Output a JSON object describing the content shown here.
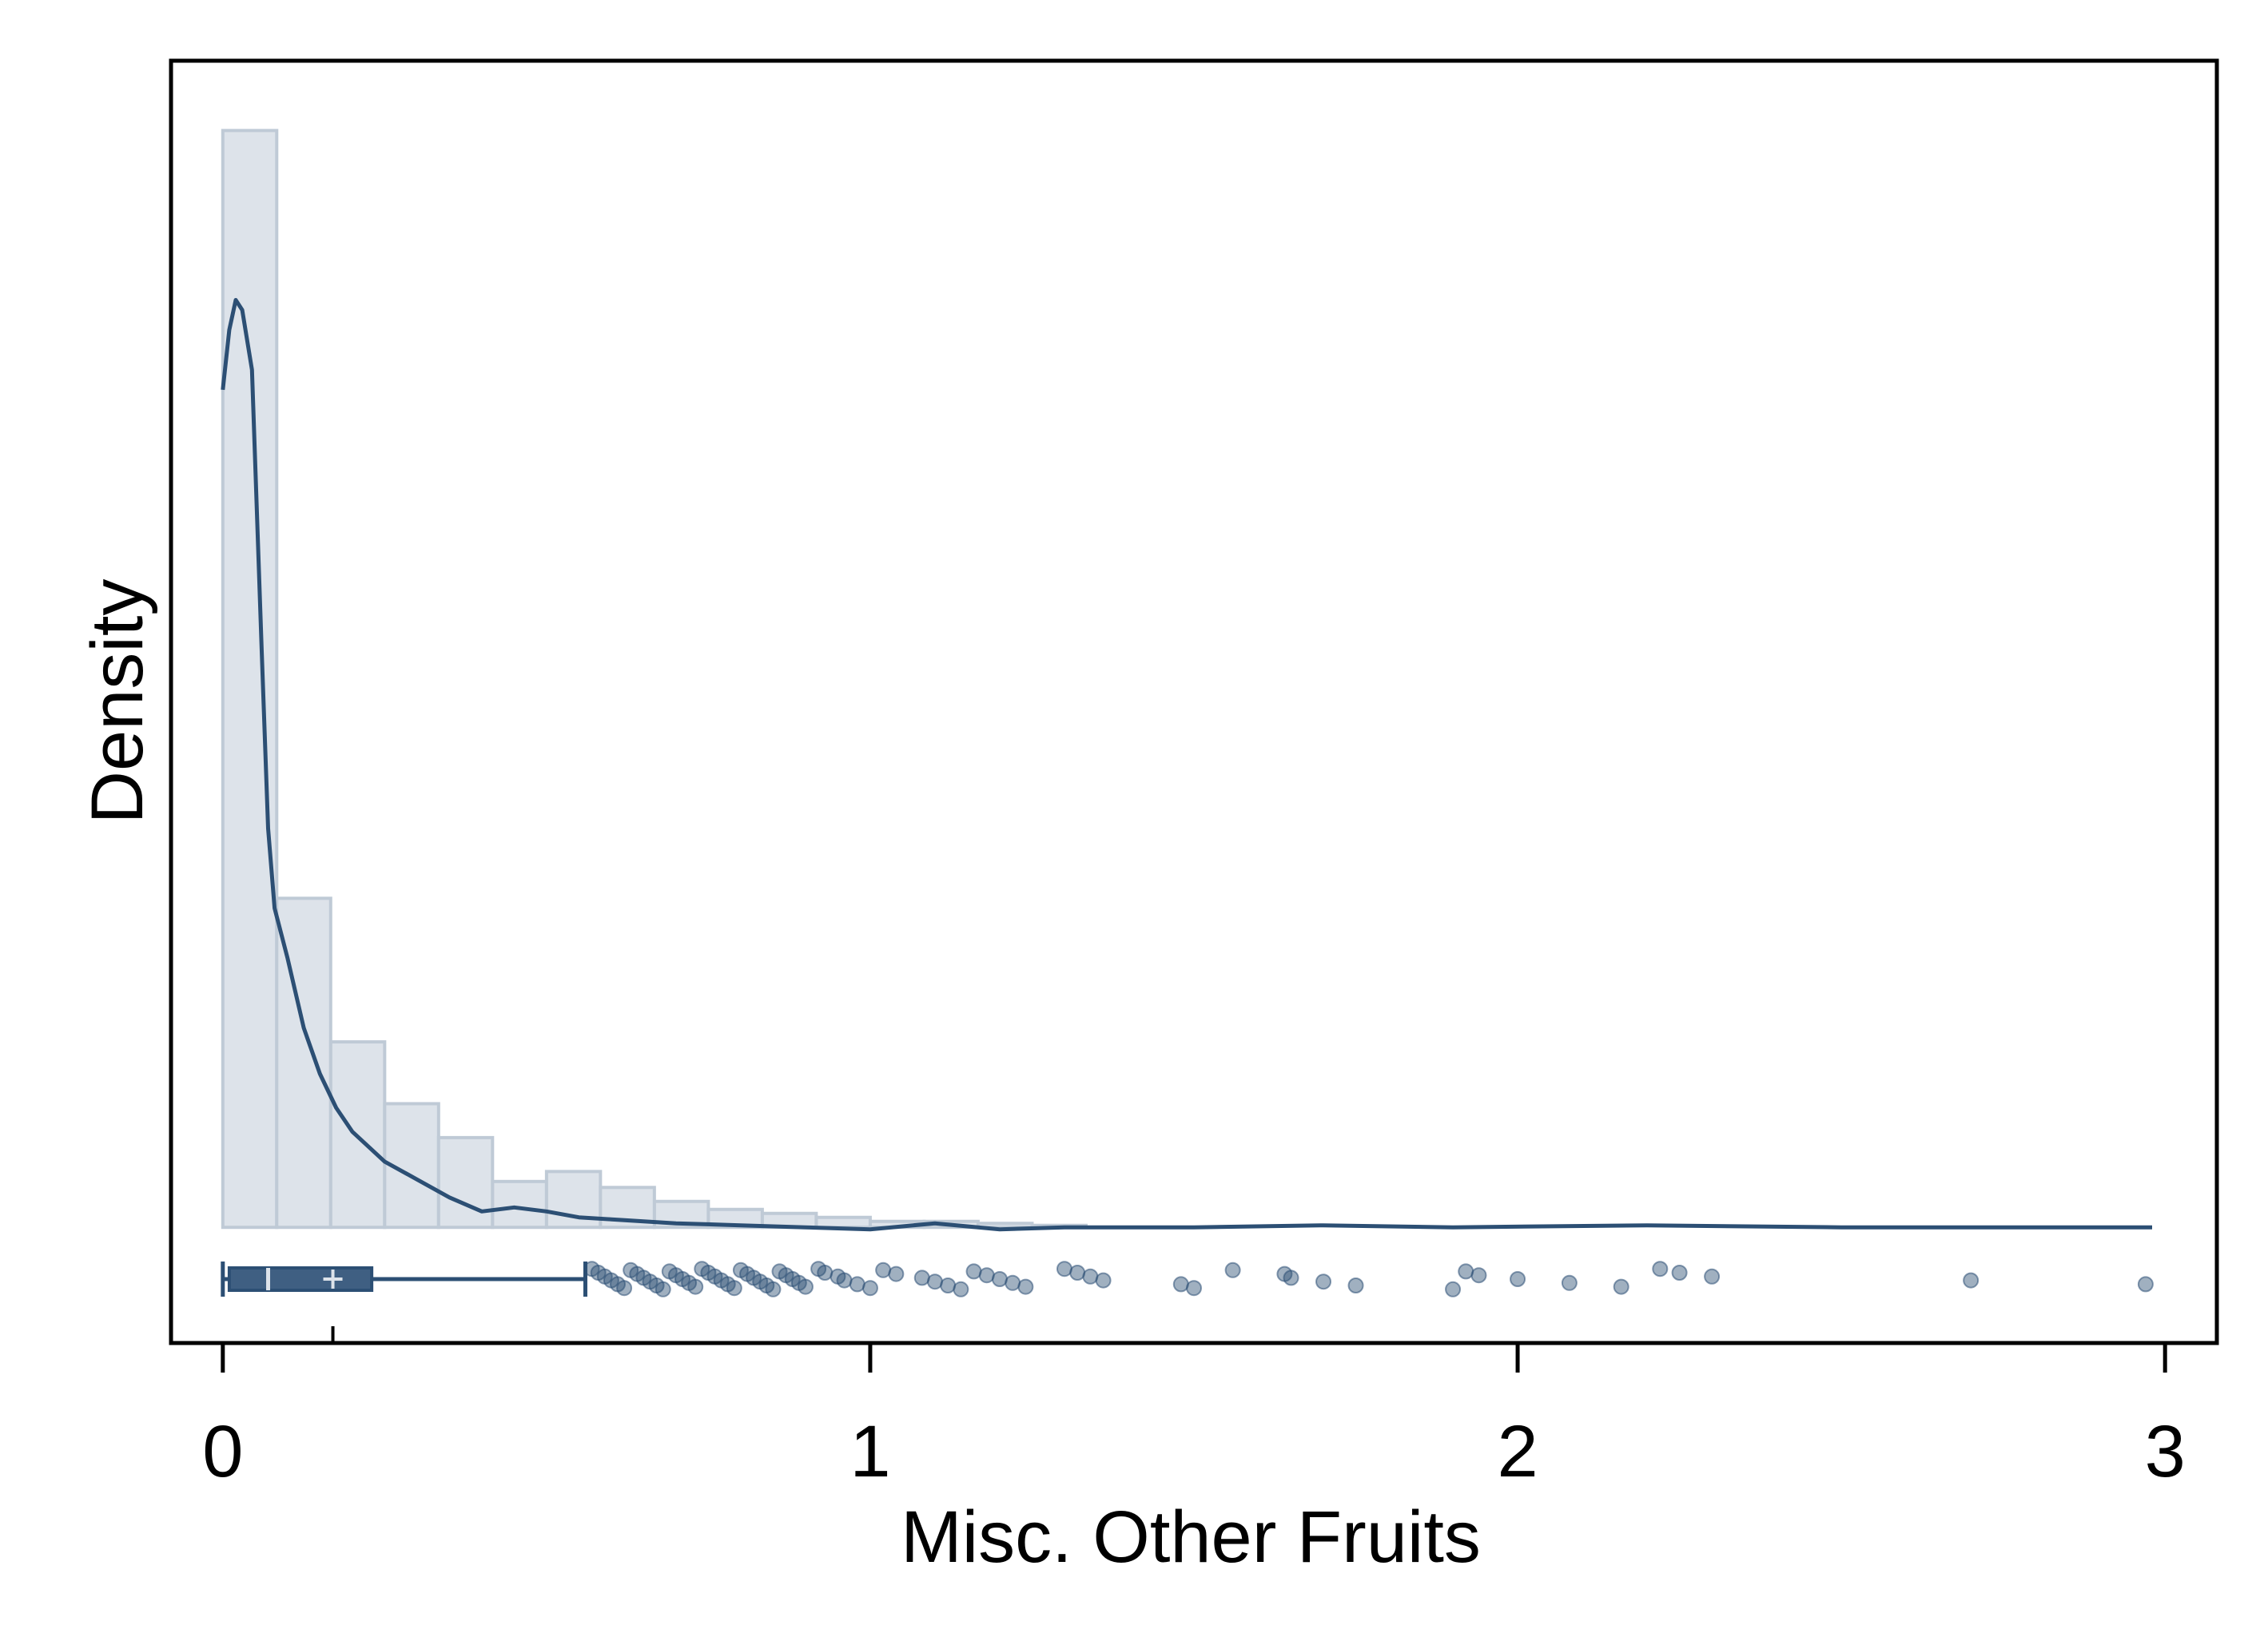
{
  "chart_data": {
    "type": "histogram",
    "title": "",
    "xlabel": "Misc. Other Fruits",
    "ylabel": "Density",
    "xlim": [
      -0.08,
      3.08
    ],
    "ylim": [
      -0.58,
      5.85
    ],
    "x_ticks": [
      "0",
      "1",
      "2",
      "3"
    ],
    "grid": false,
    "legend": "none",
    "colors": {
      "histogram_fill": "#dde3ea",
      "histogram_edge": "#bfcad6",
      "density_line": "#2c4f74",
      "boxplot": "#2c4f74",
      "points": "#2c4f74"
    },
    "histogram": {
      "bin_width": 0.0833,
      "bin_starts": [
        0,
        0.0833,
        0.1667,
        0.25,
        0.3333,
        0.4167,
        0.5,
        0.5833,
        0.6667,
        0.75,
        0.8333,
        0.9167,
        1.0,
        1.0833,
        1.1667,
        1.25
      ],
      "densities": [
        5.5,
        1.65,
        0.93,
        0.62,
        0.45,
        0.23,
        0.28,
        0.2,
        0.13,
        0.09,
        0.07,
        0.05,
        0.03,
        0.03,
        0.02,
        0.01
      ]
    },
    "density_curve": {
      "x": [
        0,
        0.01,
        0.02,
        0.03,
        0.045,
        0.06,
        0.07,
        0.08,
        0.1,
        0.125,
        0.15,
        0.175,
        0.2,
        0.25,
        0.3,
        0.35,
        0.4,
        0.45,
        0.5,
        0.55,
        0.6,
        0.65,
        0.7,
        0.8,
        0.9,
        1.0,
        1.1,
        1.2,
        1.3,
        1.5,
        1.7,
        1.9,
        2.2,
        2.5,
        2.8,
        2.98
      ],
      "y": [
        4.2,
        4.5,
        4.65,
        4.6,
        4.3,
        2.9,
        2.0,
        1.6,
        1.35,
        1.0,
        0.77,
        0.6,
        0.48,
        0.33,
        0.24,
        0.15,
        0.08,
        0.1,
        0.08,
        0.05,
        0.04,
        0.03,
        0.02,
        0.01,
        0.0,
        -0.01,
        0.02,
        -0.01,
        0.0,
        0.0,
        0.01,
        0.0,
        0.01,
        0.0,
        0.0,
        0.0
      ]
    },
    "boxplot": {
      "min": 0,
      "q1": 0.01,
      "median": 0.07,
      "mean": 0.17,
      "q3": 0.23,
      "whisker_high": 0.56
    },
    "outliers": [
      0.57,
      0.58,
      0.59,
      0.6,
      0.61,
      0.62,
      0.63,
      0.64,
      0.65,
      0.66,
      0.67,
      0.68,
      0.69,
      0.7,
      0.71,
      0.72,
      0.73,
      0.74,
      0.75,
      0.76,
      0.77,
      0.78,
      0.79,
      0.8,
      0.81,
      0.82,
      0.83,
      0.84,
      0.85,
      0.86,
      0.87,
      0.88,
      0.89,
      0.9,
      0.92,
      0.93,
      0.95,
      0.96,
      0.98,
      1.0,
      1.02,
      1.04,
      1.08,
      1.1,
      1.12,
      1.14,
      1.16,
      1.18,
      1.2,
      1.22,
      1.24,
      1.3,
      1.32,
      1.34,
      1.36,
      1.48,
      1.5,
      1.56,
      1.64,
      1.65,
      1.7,
      1.75,
      1.9,
      1.92,
      1.94,
      2.0,
      2.08,
      2.16,
      2.22,
      2.25,
      2.3,
      2.7,
      2.97
    ]
  }
}
